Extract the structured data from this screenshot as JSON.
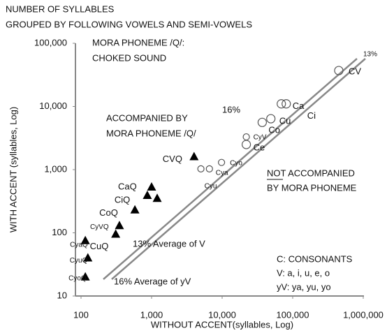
{
  "chart_data": {
    "type": "scatter",
    "title": [
      "NUMBER OF SYLLABLES",
      "GROUPED BY FOLLOWING VOWELS AND SEMI-VOWELS"
    ],
    "x_label": "WITHOUT ACCENT(syllables, Log)",
    "y_label": "WITH ACCENT (syllables, Log)",
    "log_x": true,
    "log_y": true,
    "xlim": [
      100,
      1000000
    ],
    "xticks": [
      100,
      {
        "value": 1000,
        "label": "1,000"
      },
      {
        "value": 10000,
        "label": "10,000"
      },
      {
        "value": 100000,
        "label": "100,000"
      },
      {
        "value": 1000000,
        "label": "1,000,000"
      }
    ],
    "ylim": [
      10,
      100000
    ],
    "yticks": [
      10,
      100,
      {
        "value": 1000,
        "label": "1,000"
      },
      {
        "value": 10000,
        "label": "10,000"
      },
      {
        "value": 100000,
        "label": "100,000"
      }
    ],
    "annotations": {
      "mora": [
        "MORA PHONEME /Q/:",
        "CHOKED SOUND"
      ],
      "accompanied": [
        "ACCOMPANIED BY",
        "MORA PHONEME /Q/"
      ],
      "not_accompanied": [
        "NOT ACCOMPANIED",
        "BY MORA PHONEME"
      ],
      "legend_text": [
        "C: CONSONANTS",
        "V: a, i, u, e, o",
        "yV: ya, yu, yo"
      ],
      "line13": "13%",
      "line16": "16%",
      "avg13": "13% Average of V",
      "avg16": "16% Average of yV"
    },
    "series": [
      {
        "marker": "circle",
        "color": "#555555",
        "labels": [
          "CV",
          "Ca",
          "Ci",
          "Cu",
          "Co",
          "CyV",
          "Ce",
          "Cyo",
          "Cya",
          "Cyu"
        ],
        "x": [
          450000,
          69000,
          81000,
          49000,
          37000,
          22000,
          22000,
          9800,
          6600,
          5000
        ],
        "values": [
          37000,
          11000,
          11000,
          6400,
          5600,
          3300,
          2500,
          1300,
          1030,
          1030
        ]
      },
      {
        "marker": "triangle",
        "color": "#000000",
        "labels": [
          "CVQ",
          "CaQ",
          "CiQ",
          null,
          "CoQ",
          "CyVQ",
          "CuQ",
          "CyaQ",
          "CyuQ",
          "CyoQ"
        ],
        "x": [
          4000,
          1000,
          870,
          1200,
          580,
          350,
          310,
          115,
          125,
          115
        ],
        "values": [
          1600,
          530,
          390,
          350,
          230,
          130,
          95,
          75,
          40,
          20
        ]
      }
    ]
  }
}
